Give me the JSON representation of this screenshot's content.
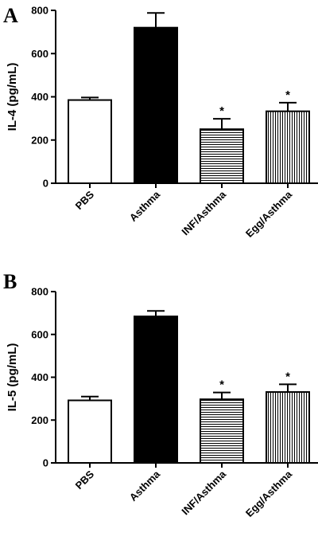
{
  "chart_data": [
    {
      "type": "bar",
      "panel": "A",
      "ylabel": "IL-4 (pg/mL)",
      "ylim": [
        0,
        800
      ],
      "yticks": [
        0,
        200,
        400,
        600,
        800
      ],
      "categories": [
        "PBS",
        "Asthma",
        "INF/Asthma",
        "Egg/Asthma"
      ],
      "values": [
        385,
        720,
        250,
        333
      ],
      "errors": [
        12,
        68,
        48,
        40
      ],
      "fills": [
        "white",
        "black",
        "horizontal-lines",
        "vertical-lines"
      ],
      "annotations": [
        "",
        "",
        "*",
        "*"
      ]
    },
    {
      "type": "bar",
      "panel": "B",
      "ylabel": "IL-5 (pg/mL)",
      "ylim": [
        0,
        800
      ],
      "yticks": [
        0,
        200,
        400,
        600,
        800
      ],
      "categories": [
        "PBS",
        "Asthma",
        "INF/Asthma",
        "Egg/Asthma"
      ],
      "values": [
        292,
        684,
        297,
        331
      ],
      "errors": [
        18,
        26,
        32,
        36
      ],
      "fills": [
        "white",
        "black",
        "horizontal-lines",
        "vertical-lines"
      ],
      "annotations": [
        "",
        "",
        "*",
        "*"
      ]
    }
  ]
}
